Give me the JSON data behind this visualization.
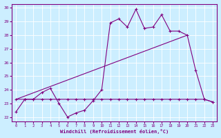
{
  "xlabel": "Windchill (Refroidissement éolien,°C)",
  "background_color": "#cceeff",
  "grid_color": "#ffffff",
  "line_color": "#800080",
  "xlim": [
    -0.5,
    23.5
  ],
  "ylim": [
    21.7,
    30.3
  ],
  "yticks": [
    22,
    23,
    24,
    25,
    26,
    27,
    28,
    29,
    30
  ],
  "xticks": [
    0,
    1,
    2,
    3,
    4,
    5,
    6,
    7,
    8,
    9,
    10,
    11,
    12,
    13,
    14,
    15,
    16,
    17,
    18,
    19,
    20,
    21,
    22,
    23
  ],
  "series1_x": [
    0,
    1,
    2,
    3,
    4,
    5,
    6,
    7,
    8,
    9,
    10,
    11,
    12,
    13,
    14,
    15,
    16,
    17,
    18,
    19,
    20,
    21,
    22,
    23
  ],
  "series1_y": [
    22.4,
    23.3,
    23.3,
    23.8,
    24.1,
    23.0,
    22.0,
    22.3,
    22.5,
    23.2,
    24.0,
    28.9,
    29.2,
    28.6,
    29.9,
    28.5,
    28.6,
    29.5,
    28.3,
    28.3,
    28.0,
    25.4,
    23.3,
    23.1
  ],
  "series2_x": [
    0,
    1,
    2,
    3,
    4,
    5,
    6,
    7,
    8,
    9,
    10,
    11,
    12,
    13,
    14,
    15,
    16,
    17,
    18,
    19,
    20,
    21,
    22,
    23
  ],
  "series2_y": [
    23.3,
    23.3,
    23.3,
    23.3,
    23.3,
    23.3,
    23.3,
    23.3,
    23.3,
    23.3,
    23.3,
    23.3,
    23.3,
    23.3,
    23.3,
    23.3,
    23.3,
    23.3,
    23.3,
    23.3,
    23.3,
    23.3,
    23.3,
    23.1
  ],
  "series3_x": [
    0,
    20
  ],
  "series3_y": [
    23.3,
    28.0
  ],
  "markersize": 2.5
}
